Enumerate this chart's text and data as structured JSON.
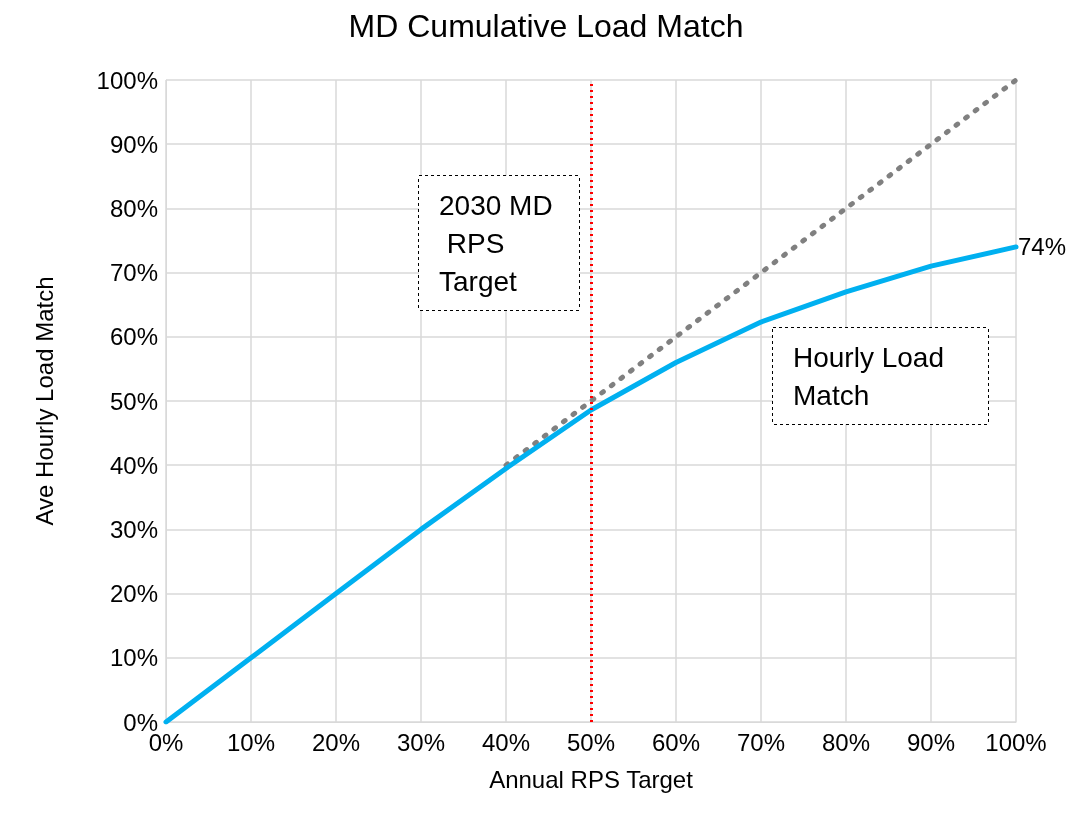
{
  "chart_data": {
    "type": "line",
    "title": "MD Cumulative Load Match",
    "xlabel": "Annual RPS Target",
    "ylabel": "Ave Hourly Load Match",
    "x": [
      0,
      10,
      20,
      30,
      40,
      50,
      60,
      70,
      80,
      90,
      100
    ],
    "series": [
      {
        "color": "#808080",
        "line_style": "dotted",
        "values": [
          null,
          null,
          null,
          null,
          40,
          50,
          60,
          70,
          80,
          90,
          100
        ]
      },
      {
        "name": "Hourly Load Match",
        "color": "#00b0f0",
        "line_style": "solid",
        "values": [
          0,
          10,
          20,
          30,
          39.5,
          48.6,
          56,
          62.3,
          67,
          71,
          74
        ],
        "value_labels": [
          null,
          null,
          null,
          null,
          null,
          null,
          null,
          null,
          null,
          null,
          "74%"
        ]
      }
    ],
    "xlim": [
      0,
      100
    ],
    "ylim": [
      0,
      100
    ],
    "xticks": [
      {
        "value": 0,
        "label": "0%"
      },
      {
        "value": 10,
        "label": "10%"
      },
      {
        "value": 20,
        "label": "20%"
      },
      {
        "value": 30,
        "label": "30%"
      },
      {
        "value": 40,
        "label": "40%"
      },
      {
        "value": 50,
        "label": "50%"
      },
      {
        "value": 60,
        "label": "60%"
      },
      {
        "value": 70,
        "label": "70%"
      },
      {
        "value": 80,
        "label": "80%"
      },
      {
        "value": 90,
        "label": "90%"
      },
      {
        "value": 100,
        "label": "100%"
      }
    ],
    "yticks": [
      {
        "value": 0,
        "label": "0%"
      },
      {
        "value": 10,
        "label": "10%"
      },
      {
        "value": 20,
        "label": "20%"
      },
      {
        "value": 30,
        "label": "30%"
      },
      {
        "value": 40,
        "label": "40%"
      },
      {
        "value": 50,
        "label": "50%"
      },
      {
        "value": 60,
        "label": "60%"
      },
      {
        "value": 70,
        "label": "70%"
      },
      {
        "value": 80,
        "label": "80%"
      },
      {
        "value": 90,
        "label": "90%"
      },
      {
        "value": 100,
        "label": "100%"
      }
    ],
    "ref_lines": [
      {
        "axis": "x",
        "value": 50,
        "label": "2030 MD RPS Target",
        "color": "#ff0000",
        "line_style": "dotted"
      }
    ],
    "grid": true,
    "legend": false,
    "marker": "none"
  }
}
